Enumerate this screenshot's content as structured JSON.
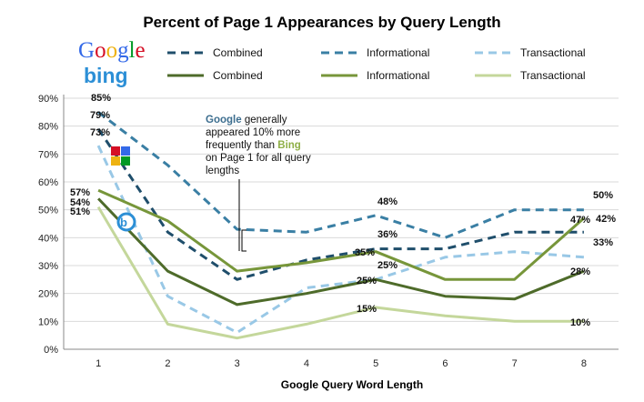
{
  "chart_data": {
    "type": "line",
    "title": "Percent of Page 1 Appearances by Query Length",
    "xlabel": "Google Query Word Length",
    "ylabel": "",
    "categories": [
      "1",
      "2",
      "3",
      "4",
      "5",
      "6",
      "7",
      "8"
    ],
    "ylim": [
      0,
      90
    ],
    "yticks": [
      "0%",
      "10%",
      "20%",
      "30%",
      "40%",
      "50%",
      "60%",
      "70%",
      "80%",
      "90%"
    ],
    "grid": true,
    "groups": [
      {
        "brand": "Google",
        "color_text": "#3d6e8f"
      },
      {
        "brand": "bing",
        "color_text": "#2c8fd6"
      }
    ],
    "series": [
      {
        "name": "Combined",
        "engine": "Google",
        "style": "dashed",
        "color": "#1f4e6b",
        "values": [
          79,
          42,
          25,
          32,
          36,
          36,
          42,
          42
        ]
      },
      {
        "name": "Informational",
        "engine": "Google",
        "style": "dashed",
        "color": "#3a7fa4",
        "values": [
          85,
          66,
          43,
          42,
          48,
          40,
          50,
          50
        ]
      },
      {
        "name": "Transactional",
        "engine": "Google",
        "style": "dashed",
        "color": "#99c8e6",
        "values": [
          73,
          19,
          6,
          22,
          25,
          33,
          35,
          33
        ]
      },
      {
        "name": "Combined",
        "engine": "bing",
        "style": "solid",
        "color": "#4e6b2a",
        "values": [
          54,
          28,
          16,
          20,
          25,
          19,
          18,
          28
        ]
      },
      {
        "name": "Informational",
        "engine": "bing",
        "style": "solid",
        "color": "#77963a",
        "values": [
          57,
          46,
          28,
          31,
          35,
          25,
          25,
          47
        ]
      },
      {
        "name": "Transactional",
        "engine": "bing",
        "style": "solid",
        "color": "#c4d79b",
        "values": [
          51,
          9,
          4,
          9,
          15,
          12,
          10,
          10
        ]
      }
    ],
    "data_labels": [
      "85%",
      "79%",
      "73%",
      "57%",
      "54%",
      "51%",
      "48%",
      "36%",
      "35%",
      "25%",
      "25%",
      "15%",
      "50%",
      "47%",
      "42%",
      "33%",
      "28%",
      "10%"
    ],
    "annotation": {
      "google_word": "Google",
      "bing_word": "Bing",
      "line1_rest": " generally",
      "line2": "appeared 10% more",
      "line3_start": "frequently than ",
      "line4": "on Page 1 for all query",
      "line5": "lengths"
    }
  }
}
